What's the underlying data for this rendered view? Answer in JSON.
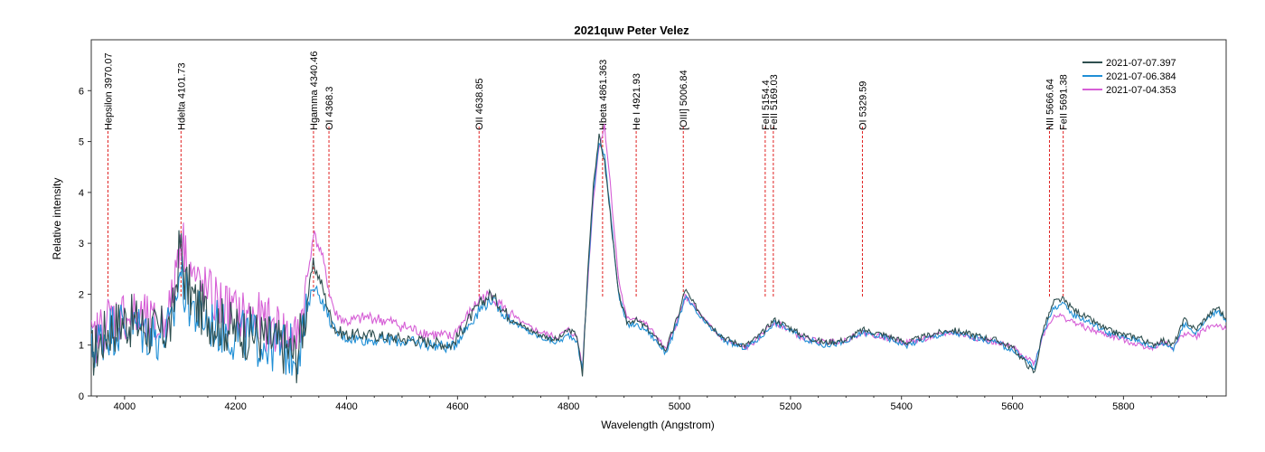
{
  "chart_data": {
    "type": "line",
    "title": "2021quw   Peter Velez",
    "xlabel": "Wavelength (Angstrom)",
    "ylabel": "Relative intensity",
    "xlim": [
      3940,
      5985
    ],
    "ylim": [
      0,
      7
    ],
    "x_ticks": [
      4000,
      4200,
      4400,
      4600,
      4800,
      5000,
      5200,
      5400,
      5600,
      5800
    ],
    "y_ticks": [
      0,
      1,
      2,
      3,
      4,
      5,
      6
    ],
    "grid": false,
    "legend_position": "top-right",
    "series": [
      {
        "name": "2021-07-07.397",
        "color": "#2f4f4f",
        "x": [
          3940,
          3970,
          4000,
          4030,
          4060,
          4085,
          4100,
          4110,
          4130,
          4160,
          4200,
          4240,
          4280,
          4310,
          4325,
          4340,
          4355,
          4370,
          4380,
          4400,
          4440,
          4480,
          4520,
          4560,
          4590,
          4620,
          4640,
          4660,
          4690,
          4720,
          4750,
          4780,
          4800,
          4815,
          4825,
          4835,
          4845,
          4855,
          4865,
          4875,
          4890,
          4905,
          4920,
          4940,
          4960,
          4975,
          4985,
          5000,
          5010,
          5020,
          5040,
          5060,
          5080,
          5100,
          5120,
          5140,
          5155,
          5170,
          5190,
          5220,
          5260,
          5300,
          5330,
          5370,
          5410,
          5450,
          5490,
          5530,
          5570,
          5600,
          5620,
          5640,
          5655,
          5675,
          5690,
          5710,
          5740,
          5770,
          5800,
          5830,
          5850,
          5870,
          5890,
          5910,
          5930,
          5950,
          5970,
          5985
        ],
        "y": [
          0.8,
          1.3,
          1.5,
          1.4,
          1.2,
          1.4,
          3.0,
          2.2,
          1.8,
          1.5,
          1.3,
          1.2,
          1.0,
          0.8,
          1.6,
          2.6,
          2.2,
          1.6,
          1.3,
          1.2,
          1.2,
          1.15,
          1.1,
          1.05,
          1.0,
          1.5,
          1.8,
          2.0,
          1.6,
          1.35,
          1.2,
          1.1,
          1.3,
          1.2,
          0.4,
          2.5,
          4.2,
          5.1,
          4.6,
          3.6,
          2.0,
          1.45,
          1.5,
          1.35,
          1.1,
          0.9,
          1.2,
          1.65,
          2.1,
          1.9,
          1.6,
          1.35,
          1.15,
          1.05,
          1.0,
          1.15,
          1.3,
          1.5,
          1.4,
          1.2,
          1.05,
          1.1,
          1.3,
          1.2,
          1.05,
          1.2,
          1.3,
          1.2,
          1.1,
          0.95,
          0.7,
          0.45,
          1.3,
          1.85,
          1.9,
          1.7,
          1.5,
          1.3,
          1.2,
          1.15,
          1.0,
          1.1,
          1.0,
          1.5,
          1.3,
          1.55,
          1.75,
          1.5
        ]
      },
      {
        "name": "2021-07-06.384",
        "color": "#1f8fd6",
        "x": [
          3940,
          3970,
          4000,
          4030,
          4060,
          4085,
          4100,
          4110,
          4130,
          4160,
          4200,
          4240,
          4280,
          4310,
          4325,
          4340,
          4355,
          4370,
          4380,
          4400,
          4440,
          4480,
          4520,
          4560,
          4590,
          4620,
          4640,
          4660,
          4690,
          4720,
          4750,
          4780,
          4800,
          4815,
          4825,
          4835,
          4845,
          4855,
          4865,
          4875,
          4890,
          4905,
          4920,
          4940,
          4960,
          4975,
          4985,
          5000,
          5010,
          5020,
          5040,
          5060,
          5080,
          5100,
          5120,
          5140,
          5155,
          5170,
          5190,
          5220,
          5260,
          5300,
          5330,
          5370,
          5410,
          5450,
          5490,
          5530,
          5570,
          5600,
          5620,
          5640,
          5655,
          5675,
          5690,
          5710,
          5740,
          5770,
          5800,
          5830,
          5850,
          5870,
          5890,
          5910,
          5930,
          5950,
          5970,
          5985
        ],
        "y": [
          0.9,
          1.3,
          1.4,
          1.3,
          1.2,
          1.3,
          2.5,
          2.0,
          1.6,
          1.4,
          1.2,
          1.1,
          0.95,
          0.85,
          1.4,
          2.2,
          1.9,
          1.5,
          1.25,
          1.15,
          1.1,
          1.1,
          1.05,
          1.0,
          0.95,
          1.4,
          1.7,
          1.9,
          1.55,
          1.3,
          1.15,
          1.05,
          1.2,
          1.1,
          0.5,
          2.4,
          4.0,
          5.0,
          4.7,
          3.7,
          2.0,
          1.4,
          1.4,
          1.3,
          1.05,
          0.85,
          1.1,
          1.55,
          1.95,
          1.8,
          1.5,
          1.3,
          1.1,
          1.0,
          0.95,
          1.1,
          1.25,
          1.45,
          1.35,
          1.15,
          1.0,
          1.05,
          1.25,
          1.15,
          1.0,
          1.15,
          1.25,
          1.15,
          1.05,
          0.9,
          0.75,
          0.55,
          1.25,
          1.75,
          1.8,
          1.6,
          1.45,
          1.25,
          1.15,
          1.1,
          0.95,
          1.05,
          0.95,
          1.4,
          1.25,
          1.5,
          1.7,
          1.45
        ]
      },
      {
        "name": "2021-07-04.353",
        "color": "#d65fd6",
        "x": [
          3940,
          3970,
          4000,
          4030,
          4060,
          4085,
          4100,
          4110,
          4130,
          4160,
          4200,
          4240,
          4280,
          4310,
          4325,
          4340,
          4355,
          4370,
          4380,
          4400,
          4440,
          4480,
          4520,
          4560,
          4590,
          4620,
          4640,
          4660,
          4690,
          4720,
          4750,
          4780,
          4800,
          4815,
          4825,
          4835,
          4845,
          4855,
          4865,
          4875,
          4890,
          4905,
          4920,
          4940,
          4960,
          4975,
          4985,
          5000,
          5010,
          5020,
          5040,
          5060,
          5080,
          5100,
          5120,
          5140,
          5155,
          5170,
          5190,
          5220,
          5260,
          5300,
          5330,
          5370,
          5410,
          5450,
          5490,
          5530,
          5570,
          5600,
          5620,
          5640,
          5655,
          5675,
          5690,
          5710,
          5740,
          5770,
          5800,
          5830,
          5850,
          5870,
          5890,
          5910,
          5930,
          5950,
          5970,
          5985
        ],
        "y": [
          1.0,
          1.5,
          1.6,
          1.5,
          1.3,
          1.8,
          3.2,
          2.8,
          2.2,
          1.9,
          1.6,
          1.5,
          1.3,
          1.1,
          1.9,
          3.2,
          2.8,
          2.0,
          1.6,
          1.45,
          1.55,
          1.45,
          1.3,
          1.2,
          1.15,
          1.6,
          1.9,
          2.0,
          1.65,
          1.4,
          1.25,
          1.15,
          1.3,
          1.15,
          0.6,
          2.3,
          3.9,
          4.9,
          5.3,
          4.2,
          2.3,
          1.5,
          1.55,
          1.4,
          1.15,
          0.9,
          1.15,
          1.6,
          1.95,
          1.85,
          1.55,
          1.3,
          1.1,
          1.0,
          0.95,
          1.1,
          1.3,
          1.45,
          1.35,
          1.15,
          1.05,
          1.1,
          1.25,
          1.15,
          1.05,
          1.15,
          1.25,
          1.15,
          1.05,
          0.95,
          0.8,
          0.65,
          1.2,
          1.6,
          1.55,
          1.45,
          1.3,
          1.2,
          1.1,
          1.0,
          0.95,
          1.05,
          0.95,
          1.25,
          1.15,
          1.35,
          1.4,
          1.3
        ]
      }
    ],
    "reference_lines": [
      {
        "label": "Hepsilon 3970.07",
        "x": 3970.07
      },
      {
        "label": "Hdelta 4101.73",
        "x": 4101.73
      },
      {
        "label": "Hgamma 4340.46",
        "x": 4340.46
      },
      {
        "label": "OI 4368.3",
        "x": 4368.3
      },
      {
        "label": "OII 4638.85",
        "x": 4638.85
      },
      {
        "label": "Hbeta 4861.363",
        "x": 4861.363
      },
      {
        "label": "He I 4921.93",
        "x": 4921.93
      },
      {
        "label": "[OIII] 5006.84",
        "x": 5006.84
      },
      {
        "label": "FeII 5154.4",
        "x": 5154.4
      },
      {
        "label": "FeII 5169.03",
        "x": 5169.03
      },
      {
        "label": "OI 5329.59",
        "x": 5329.59
      },
      {
        "label": "NII 5666.64",
        "x": 5666.64
      },
      {
        "label": "FeII 5691.38",
        "x": 5691.38
      }
    ],
    "reference_line_color": "#e02020"
  }
}
